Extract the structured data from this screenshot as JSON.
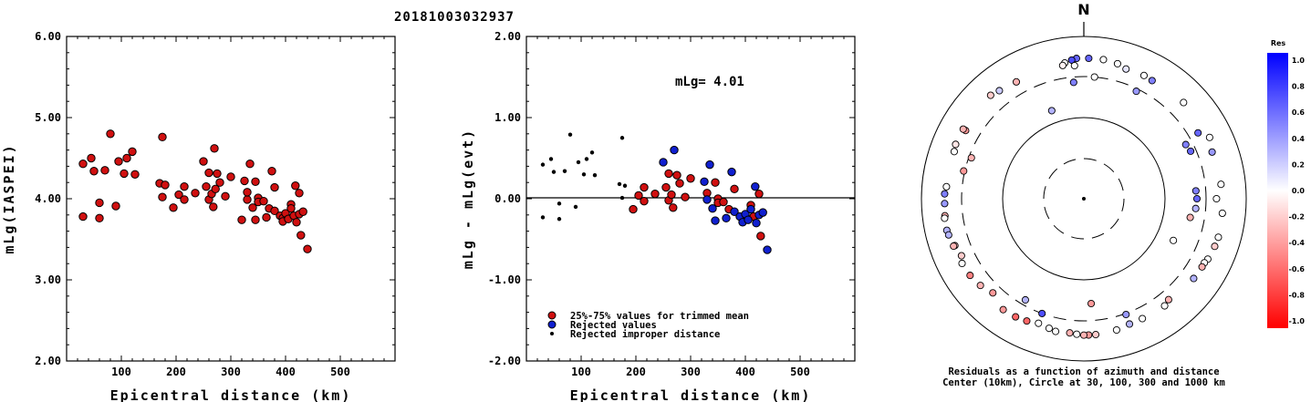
{
  "title": "20181003032937",
  "chart_data": [
    {
      "type": "scatter",
      "ylabel": "mLg(IASPEI)",
      "xlabel": "Epicentral distance (km)",
      "xlim": [
        0,
        600
      ],
      "ylim": [
        2.0,
        6.0
      ],
      "xticks": [
        "100",
        "200",
        "300",
        "400",
        "500"
      ],
      "yticks": [
        "2.00",
        "3.00",
        "4.00",
        "5.00",
        "6.00"
      ],
      "series": [
        {
          "points": [
            [
              30,
              4.43
            ],
            [
              30,
              3.78
            ],
            [
              45,
              4.5
            ],
            [
              50,
              4.34
            ],
            [
              60,
              3.95
            ],
            [
              60,
              3.76
            ],
            [
              70,
              4.35
            ],
            [
              80,
              4.8
            ],
            [
              90,
              3.91
            ],
            [
              95,
              4.46
            ],
            [
              105,
              4.31
            ],
            [
              110,
              4.5
            ],
            [
              120,
              4.58
            ],
            [
              125,
              4.3
            ],
            [
              170,
              4.19
            ],
            [
              175,
              4.76
            ],
            [
              175,
              4.02
            ],
            [
              180,
              4.17
            ],
            [
              195,
              3.89
            ],
            [
              205,
              4.05
            ],
            [
              215,
              4.15
            ],
            [
              215,
              3.99
            ],
            [
              235,
              4.07
            ],
            [
              250,
              4.46
            ],
            [
              255,
              4.15
            ],
            [
              260,
              4.32
            ],
            [
              260,
              3.99
            ],
            [
              265,
              4.06
            ],
            [
              268,
              3.9
            ],
            [
              270,
              4.62
            ],
            [
              272,
              4.12
            ],
            [
              275,
              4.31
            ],
            [
              280,
              4.2
            ],
            [
              290,
              4.03
            ],
            [
              300,
              4.27
            ],
            [
              320,
              3.74
            ],
            [
              325,
              4.22
            ],
            [
              330,
              3.99
            ],
            [
              330,
              4.08
            ],
            [
              335,
              4.43
            ],
            [
              340,
              3.89
            ],
            [
              345,
              4.21
            ],
            [
              345,
              3.74
            ],
            [
              350,
              4.01
            ],
            [
              350,
              3.96
            ],
            [
              360,
              3.97
            ],
            [
              365,
              3.77
            ],
            [
              370,
              3.88
            ],
            [
              375,
              4.34
            ],
            [
              380,
              4.14
            ],
            [
              380,
              3.85
            ],
            [
              390,
              3.79
            ],
            [
              395,
              3.76
            ],
            [
              395,
              3.72
            ],
            [
              400,
              3.82
            ],
            [
              405,
              3.75
            ],
            [
              410,
              3.93
            ],
            [
              410,
              3.88
            ],
            [
              415,
              3.79
            ],
            [
              418,
              4.16
            ],
            [
              420,
              3.71
            ],
            [
              425,
              4.07
            ],
            [
              425,
              3.81
            ],
            [
              428,
              3.55
            ],
            [
              432,
              3.84
            ],
            [
              440,
              3.38
            ]
          ]
        }
      ]
    },
    {
      "type": "scatter",
      "ylabel": "mLg - mLg(evt)",
      "xlabel": "Epicentral distance (km)",
      "annotation": "mLg= 4.01",
      "xlim": [
        0,
        600
      ],
      "ylim": [
        -2.0,
        2.0
      ],
      "xticks": [
        "100",
        "200",
        "300",
        "400",
        "500"
      ],
      "yticks": [
        "-2.00",
        "-1.00",
        "0.00",
        "1.00",
        "2.00"
      ],
      "legend": [
        "25%-75% values for trimmed mean",
        "Rejected values",
        "Rejected improper distance"
      ],
      "legend_position": "bottom-left",
      "reference_line": 0,
      "colors": {
        "trimmed": "#d01010",
        "rejected": "#1020d0",
        "improper": "#000000"
      },
      "series": [
        {
          "name": "25%-75% values for trimmed mean",
          "points": [
            [
              195,
              -0.13
            ],
            [
              205,
              0.04
            ],
            [
              215,
              0.14
            ],
            [
              215,
              -0.03
            ],
            [
              235,
              0.06
            ],
            [
              255,
              0.14
            ],
            [
              260,
              0.31
            ],
            [
              260,
              -0.02
            ],
            [
              265,
              0.05
            ],
            [
              268,
              -0.11
            ],
            [
              275,
              0.29
            ],
            [
              280,
              0.19
            ],
            [
              290,
              0.02
            ],
            [
              300,
              0.25
            ],
            [
              330,
              0.07
            ],
            [
              345,
              0.2
            ],
            [
              350,
              0.0
            ],
            [
              350,
              -0.05
            ],
            [
              360,
              -0.04
            ],
            [
              370,
              -0.13
            ],
            [
              380,
              0.12
            ],
            [
              395,
              -0.25
            ],
            [
              410,
              -0.08
            ],
            [
              415,
              -0.22
            ],
            [
              425,
              0.06
            ],
            [
              428,
              -0.46
            ]
          ]
        },
        {
          "name": "Rejected values",
          "points": [
            [
              250,
              0.45
            ],
            [
              270,
              0.6
            ],
            [
              325,
              0.21
            ],
            [
              330,
              -0.01
            ],
            [
              335,
              0.42
            ],
            [
              340,
              -0.12
            ],
            [
              345,
              -0.27
            ],
            [
              365,
              -0.24
            ],
            [
              375,
              0.33
            ],
            [
              380,
              -0.16
            ],
            [
              390,
              -0.22
            ],
            [
              395,
              -0.29
            ],
            [
              400,
              -0.19
            ],
            [
              405,
              -0.26
            ],
            [
              410,
              -0.13
            ],
            [
              418,
              0.15
            ],
            [
              420,
              -0.3
            ],
            [
              425,
              -0.2
            ],
            [
              432,
              -0.17
            ],
            [
              440,
              -0.63
            ]
          ]
        },
        {
          "name": "Rejected improper distance",
          "points": [
            [
              30,
              0.42
            ],
            [
              30,
              -0.23
            ],
            [
              45,
              0.49
            ],
            [
              50,
              0.33
            ],
            [
              60,
              -0.06
            ],
            [
              60,
              -0.25
            ],
            [
              70,
              0.34
            ],
            [
              80,
              0.79
            ],
            [
              90,
              -0.1
            ],
            [
              95,
              0.45
            ],
            [
              105,
              0.3
            ],
            [
              110,
              0.49
            ],
            [
              120,
              0.57
            ],
            [
              125,
              0.29
            ],
            [
              170,
              0.18
            ],
            [
              175,
              0.75
            ],
            [
              175,
              0.01
            ],
            [
              180,
              0.16
            ]
          ]
        }
      ]
    },
    {
      "type": "polar-scatter",
      "north_label": "N",
      "caption_line1": "Residuals as a function of azimuth and distance",
      "caption_line2": "Center (10km), Circle at 30, 100, 300 and 1000 km",
      "rings_km": [
        30,
        100,
        300,
        1000
      ],
      "colorbar": {
        "title": "Res",
        "ticks": [
          "1.0",
          "0.8",
          "0.6",
          "0.4",
          "0.2",
          "0.0",
          "-0.2",
          "-0.4",
          "-0.6",
          "-0.8",
          "-1.0"
        ],
        "low_color": "#ff0000",
        "mid_color": "#ffffff",
        "high_color": "#0000ff"
      },
      "points": [
        {
          "az": 2,
          "dist": 520,
          "res": 0.6
        },
        {
          "az": 8,
          "dist": 520,
          "res": 0.0
        },
        {
          "az": 14,
          "dist": 500,
          "res": 0.0
        },
        {
          "az": 18,
          "dist": 460,
          "res": 0.1
        },
        {
          "az": -3,
          "dist": 520,
          "res": 0.6
        },
        {
          "az": -5,
          "dist": 500,
          "res": 0.7
        },
        {
          "az": -8,
          "dist": 470,
          "res": 0.0
        },
        {
          "az": -9,
          "dist": 440,
          "res": -0.05
        },
        {
          "az": -4,
          "dist": 420,
          "res": 0.0
        },
        {
          "az": 26,
          "dist": 470,
          "res": 0.0
        },
        {
          "az": 30,
          "dist": 460,
          "res": 0.5
        },
        {
          "az": -30,
          "dist": 440,
          "res": -0.3
        },
        {
          "az": -38,
          "dist": 470,
          "res": 0.2
        },
        {
          "az": -42,
          "dist": 500,
          "res": -0.2
        },
        {
          "az": 46,
          "dist": 490,
          "res": 0.0
        },
        {
          "az": 60,
          "dist": 400,
          "res": 0.6
        },
        {
          "az": 64,
          "dist": 510,
          "res": 0.0
        },
        {
          "az": 70,
          "dist": 460,
          "res": 0.4
        },
        {
          "az": -60,
          "dist": 460,
          "res": -0.4
        },
        {
          "az": -67,
          "dist": 500,
          "res": -0.1
        },
        {
          "az": 5,
          "dist": 300,
          "res": 0.0
        },
        {
          "az": -5,
          "dist": 260,
          "res": 0.5
        },
        {
          "az": 26,
          "dist": 280,
          "res": 0.4
        },
        {
          "az": -20,
          "dist": 140,
          "res": 0.3
        },
        {
          "az": 62,
          "dist": 250,
          "res": 0.5
        },
        {
          "az": 66,
          "dist": 260,
          "res": 0.6
        },
        {
          "az": -70,
          "dist": 280,
          "res": -0.3
        },
        {
          "az": 86,
          "dist": 230,
          "res": 0.5
        },
        {
          "az": 90,
          "dist": 235,
          "res": 0.6
        },
        {
          "az": 95,
          "dist": 230,
          "res": 0.3
        },
        {
          "az": 100,
          "dist": 205,
          "res": -0.3
        },
        {
          "az": 115,
          "dist": 160,
          "res": 0.0
        },
        {
          "az": 90,
          "dist": 410,
          "res": 0.0
        },
        {
          "az": 84,
          "dist": 480,
          "res": 0.0
        },
        {
          "az": 96,
          "dist": 500,
          "res": 0.0
        },
        {
          "az": -88,
          "dist": 500,
          "res": 0.5
        },
        {
          "az": -97,
          "dist": 510,
          "res": -0.3
        },
        {
          "az": -103,
          "dist": 520,
          "res": 0.3
        },
        {
          "az": -110,
          "dist": 470,
          "res": -0.2
        },
        {
          "az": 106,
          "dist": 510,
          "res": 0.0
        },
        {
          "az": 110,
          "dist": 500,
          "res": -0.2
        },
        {
          "az": 116,
          "dist": 480,
          "res": 0.0
        },
        {
          "az": 118,
          "dist": 460,
          "res": 0.0
        },
        {
          "az": 120,
          "dist": 460,
          "res": -0.3
        },
        {
          "az": 126,
          "dist": 450,
          "res": 0.3
        },
        {
          "az": 140,
          "dist": 400,
          "res": -0.3
        },
        {
          "az": 143,
          "dist": 430,
          "res": 0.0
        },
        {
          "az": 160,
          "dist": 420,
          "res": 0.3
        },
        {
          "az": 154,
          "dist": 420,
          "res": 0.0
        },
        {
          "az": 166,
          "dist": 445,
          "res": 0.0
        },
        {
          "az": 175,
          "dist": 460,
          "res": -0.2
        },
        {
          "az": 178,
          "dist": 460,
          "res": -0.4
        },
        {
          "az": 180,
          "dist": 460,
          "res": -0.3
        },
        {
          "az": 183,
          "dist": 450,
          "res": 0.0
        },
        {
          "az": 186,
          "dist": 440,
          "res": -0.3
        },
        {
          "az": 192,
          "dist": 450,
          "res": 0.0
        },
        {
          "az": 195,
          "dist": 430,
          "res": 0.0
        },
        {
          "az": 200,
          "dist": 410,
          "res": 0.0
        },
        {
          "az": 205,
          "dist": 440,
          "res": -0.6
        },
        {
          "az": 210,
          "dist": 460,
          "res": -0.6
        },
        {
          "az": 216,
          "dist": 470,
          "res": -0.4
        },
        {
          "az": 200,
          "dist": 300,
          "res": 0.7
        },
        {
          "az": 210,
          "dist": 260,
          "res": 0.3
        },
        {
          "az": 160,
          "dist": 310,
          "res": 0.4
        },
        {
          "az": 176,
          "dist": 190,
          "res": -0.4
        },
        {
          "az": 224,
          "dist": 390,
          "res": -0.4
        },
        {
          "az": 230,
          "dist": 440,
          "res": -0.3
        },
        {
          "az": 236,
          "dist": 470,
          "res": -0.5
        },
        {
          "az": 242,
          "dist": 480,
          "res": 0.0
        },
        {
          "az": 250,
          "dist": 490,
          "res": -0.3
        },
        {
          "az": 245,
          "dist": 440,
          "res": -0.2
        },
        {
          "az": 255,
          "dist": 510,
          "res": 0.3
        },
        {
          "az": 262,
          "dist": 520,
          "res": 0.0
        },
        {
          "az": 268,
          "dist": 500,
          "res": 0.4
        },
        {
          "az": 275,
          "dist": 480,
          "res": 0.0
        },
        {
          "az": 283,
          "dist": 310,
          "res": -0.4
        },
        {
          "az": 290,
          "dist": 480,
          "res": 0.0
        },
        {
          "az": 300,
          "dist": 500,
          "res": -0.3
        }
      ]
    }
  ]
}
